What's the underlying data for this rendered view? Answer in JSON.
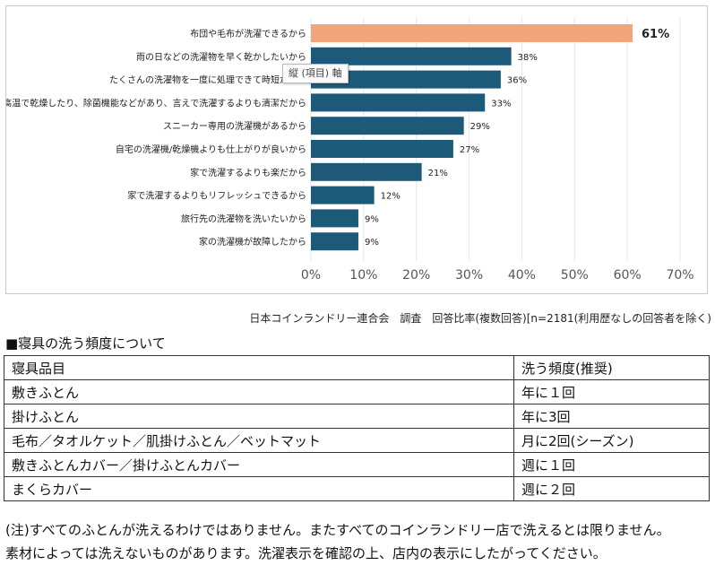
{
  "chart_data": {
    "type": "bar",
    "orientation": "horizontal",
    "categories": [
      "布団や毛布が洗濯できるから",
      "雨の日などの洗濯物を早く乾かしたいから",
      "たくさんの洗濯物を一度に処理できて時短だから",
      "高温で乾燥したり、除菌機能などがあり、言えで洗濯するよりも清潔だから",
      "スニーカー専用の洗濯機があるから",
      "自宅の洗濯機/乾燥機よりも仕上がりが良いから",
      "家で洗濯するよりも楽だから",
      "家で洗濯するよりもリフレッシュできるから",
      "旅行先の洗濯物を洗いたいから",
      "家の洗濯機が故障したから"
    ],
    "values": [
      61,
      38,
      36,
      33,
      29,
      27,
      21,
      12,
      9,
      9
    ],
    "value_labels": [
      "61%",
      "38%",
      "36%",
      "33%",
      "29%",
      "27%",
      "21%",
      "12%",
      "9%",
      "9%"
    ],
    "xlim": [
      0,
      70
    ],
    "xticks": [
      0,
      10,
      20,
      30,
      40,
      50,
      60,
      70
    ],
    "xtick_labels": [
      "0%",
      "10%",
      "20%",
      "30%",
      "40%",
      "50%",
      "60%",
      "70%"
    ],
    "grid": "vertical",
    "highlight_color": "#f2a47c",
    "bar_color": "#1d5a7a",
    "gridline_color": "#dfe8ee"
  },
  "tooltip": "縦 (項目) 軸",
  "source_note": "日本コインランドリー連合会　調査　回答比率(複数回答)[n=2181(利用歴なしの回答者を除く)",
  "section_heading": "■寝具の洗う頻度について",
  "table": {
    "headers": [
      "寝具品目",
      "洗う頻度(推奨)"
    ],
    "rows": [
      [
        "敷きふとん",
        "年に１回"
      ],
      [
        "掛けふとん",
        "年に3回"
      ],
      [
        "毛布／タオルケット／肌掛けふとん／ベットマット",
        "月に2回(シーズン)"
      ],
      [
        "敷きふとんカバー／掛けふとんカバー",
        "週に１回"
      ],
      [
        "まくらカバー",
        "週に２回"
      ]
    ]
  },
  "footnotes": [
    "(注)すべてのふとんが洗えるわけではありません。またすべてのコインランドリー店で洗えるとは限りません。",
    "素材によっては洗えないものがあります。洗濯表示を確認の上、店内の表示にしたがってください。"
  ]
}
